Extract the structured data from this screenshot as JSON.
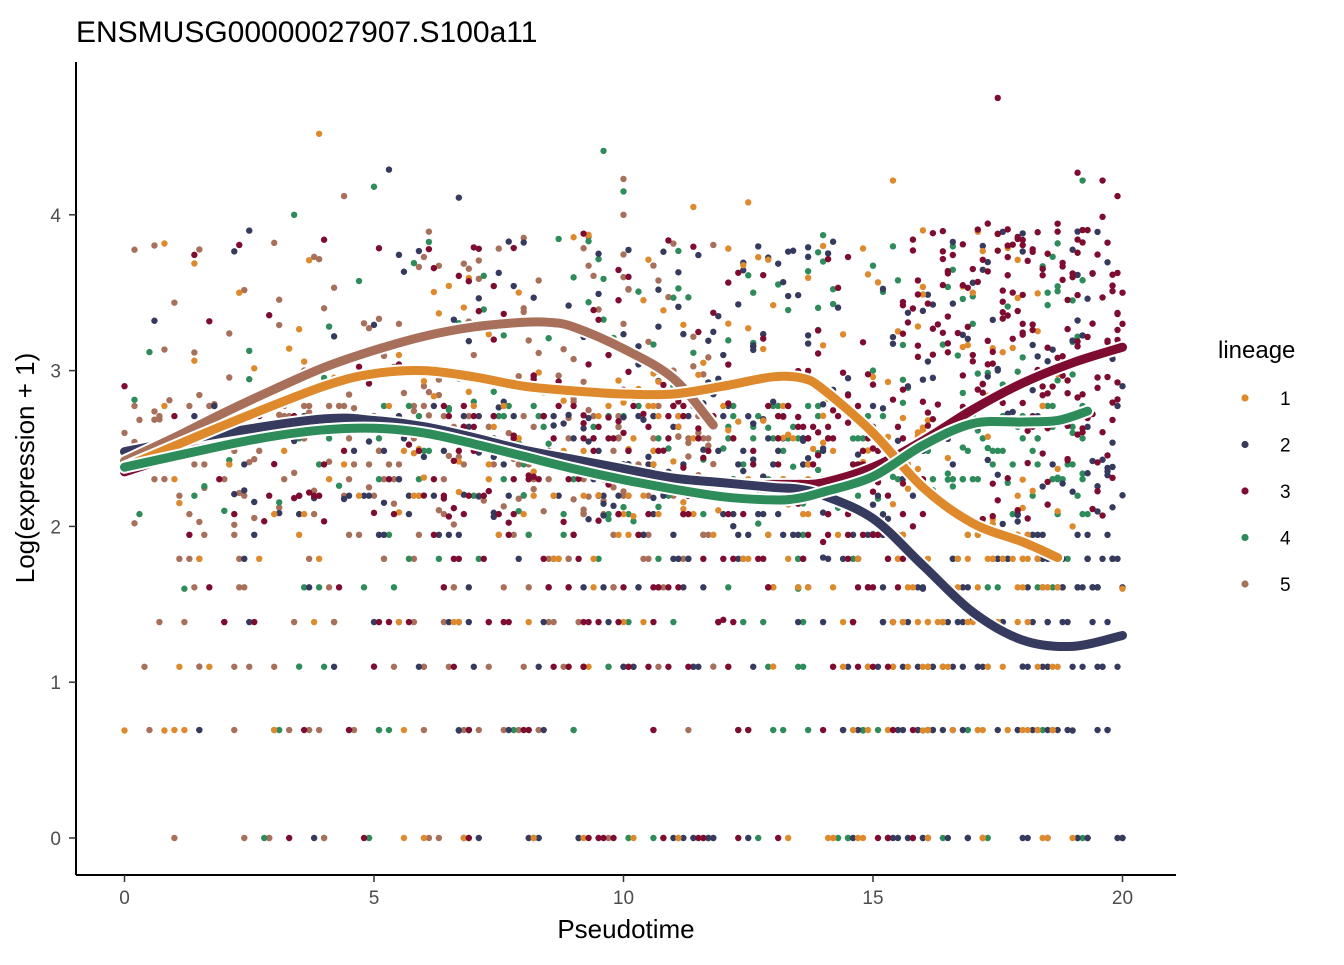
{
  "chart_data": {
    "type": "scatter",
    "title": "ENSMUSG00000027907.S100a11",
    "xlabel": "Pseudotime",
    "ylabel": "Log(expression + 1)",
    "xlim": [
      -1,
      21
    ],
    "ylim": [
      -0.25,
      4.95
    ],
    "x_ticks": [
      0,
      5,
      10,
      15,
      20
    ],
    "y_ticks": [
      0,
      1,
      2,
      3,
      4
    ],
    "grid": false,
    "legend": {
      "title": "lineage",
      "position": "right"
    },
    "series": [
      {
        "name": "1",
        "color": "#DE8A2C",
        "curve": [
          [
            0,
            2.38
          ],
          [
            2,
            2.65
          ],
          [
            4,
            2.9
          ],
          [
            5,
            2.98
          ],
          [
            6,
            3.0
          ],
          [
            7,
            2.96
          ],
          [
            8,
            2.9
          ],
          [
            9,
            2.87
          ],
          [
            10,
            2.85
          ],
          [
            11,
            2.85
          ],
          [
            12,
            2.9
          ],
          [
            13,
            2.96
          ],
          [
            13.6,
            2.95
          ],
          [
            14,
            2.88
          ],
          [
            15,
            2.6
          ],
          [
            16,
            2.25
          ],
          [
            17,
            2.02
          ],
          [
            18,
            1.9
          ],
          [
            18.7,
            1.8
          ]
        ],
        "scatter_examples": [
          [
            0,
            0.69
          ],
          [
            0.8,
            0.69
          ],
          [
            3.9,
            4.52
          ],
          [
            2.3,
            3.5
          ],
          [
            5.5,
            3.1
          ],
          [
            8.5,
            3.3
          ],
          [
            11.4,
            4.05
          ],
          [
            12.5,
            4.08
          ],
          [
            14,
            3.8
          ],
          [
            15.4,
            4.22
          ],
          [
            16,
            3.9
          ],
          [
            17,
            3.5
          ],
          [
            18,
            2.3
          ],
          [
            19,
            2.0
          ],
          [
            20,
            1.6
          ],
          [
            6,
            0.0
          ],
          [
            13,
            1.1
          ],
          [
            16,
            0.69
          ],
          [
            19,
            0.0
          ],
          [
            9.5,
            2.2
          ]
        ]
      },
      {
        "name": "2",
        "color": "#363A5E",
        "curve": [
          [
            0,
            2.48
          ],
          [
            2,
            2.6
          ],
          [
            4,
            2.69
          ],
          [
            5,
            2.68
          ],
          [
            6,
            2.64
          ],
          [
            7,
            2.57
          ],
          [
            8,
            2.49
          ],
          [
            9,
            2.43
          ],
          [
            10,
            2.37
          ],
          [
            11,
            2.31
          ],
          [
            12,
            2.28
          ],
          [
            13,
            2.25
          ],
          [
            13.5,
            2.24
          ],
          [
            14,
            2.2
          ],
          [
            15,
            2.05
          ],
          [
            16,
            1.75
          ],
          [
            17,
            1.45
          ],
          [
            18,
            1.27
          ],
          [
            19,
            1.23
          ],
          [
            20,
            1.3
          ]
        ],
        "scatter_examples": [
          [
            5.3,
            4.29
          ],
          [
            6.7,
            4.11
          ],
          [
            0.6,
            3.32
          ],
          [
            9.5,
            3.75
          ],
          [
            12,
            3.1
          ],
          [
            13,
            2.8
          ],
          [
            14,
            2.5
          ],
          [
            15,
            1.95
          ],
          [
            16,
            1.6
          ],
          [
            17,
            1.4
          ],
          [
            18,
            1.1
          ],
          [
            19,
            0.69
          ],
          [
            20,
            0.0
          ],
          [
            20,
            2.9
          ],
          [
            20,
            2.2
          ],
          [
            6.7,
            0.69
          ],
          [
            12.5,
            0.0
          ],
          [
            16,
            0.0
          ],
          [
            14,
            1.8
          ],
          [
            18,
            0.0
          ]
        ]
      },
      {
        "name": "3",
        "color": "#7E0C30",
        "curve": [
          [
            0,
            2.35
          ],
          [
            2,
            2.55
          ],
          [
            4,
            2.67
          ],
          [
            5,
            2.67
          ],
          [
            6,
            2.63
          ],
          [
            7,
            2.56
          ],
          [
            8,
            2.49
          ],
          [
            9,
            2.42
          ],
          [
            10,
            2.36
          ],
          [
            11,
            2.3
          ],
          [
            12,
            2.27
          ],
          [
            13,
            2.27
          ],
          [
            13.5,
            2.27
          ],
          [
            14,
            2.28
          ],
          [
            15,
            2.38
          ],
          [
            16,
            2.55
          ],
          [
            17,
            2.75
          ],
          [
            18,
            2.92
          ],
          [
            19,
            3.05
          ],
          [
            20,
            3.15
          ]
        ],
        "scatter_examples": [
          [
            17.5,
            4.75
          ],
          [
            19.1,
            4.27
          ],
          [
            19.6,
            4.22
          ],
          [
            19.9,
            4.12
          ],
          [
            18.5,
            3.75
          ],
          [
            19,
            3.6
          ],
          [
            20,
            3.5
          ],
          [
            20,
            3.3
          ],
          [
            18,
            3.3
          ],
          [
            17,
            3.1
          ],
          [
            16,
            2.8
          ],
          [
            15,
            2.5
          ],
          [
            14,
            1.9
          ],
          [
            12,
            1.4
          ],
          [
            6.9,
            0.0
          ],
          [
            9.3,
            0.0
          ],
          [
            0,
            2.9
          ],
          [
            3,
            2.4
          ],
          [
            5,
            1.1
          ],
          [
            10,
            2.6
          ]
        ]
      },
      {
        "name": "4",
        "color": "#2E8C5A",
        "curve": [
          [
            0,
            2.38
          ],
          [
            2,
            2.52
          ],
          [
            3,
            2.58
          ],
          [
            4,
            2.62
          ],
          [
            5,
            2.63
          ],
          [
            6,
            2.6
          ],
          [
            7,
            2.53
          ],
          [
            8,
            2.45
          ],
          [
            9,
            2.37
          ],
          [
            10,
            2.3
          ],
          [
            11,
            2.24
          ],
          [
            12,
            2.19
          ],
          [
            13,
            2.17
          ],
          [
            13.5,
            2.18
          ],
          [
            14,
            2.22
          ],
          [
            15,
            2.32
          ],
          [
            16,
            2.52
          ],
          [
            17,
            2.66
          ],
          [
            18,
            2.67
          ],
          [
            18.7,
            2.68
          ],
          [
            19.3,
            2.74
          ]
        ],
        "scatter_examples": [
          [
            9.6,
            4.41
          ],
          [
            5,
            4.18
          ],
          [
            10,
            4.15
          ],
          [
            3.4,
            4.0
          ],
          [
            19.2,
            4.22
          ],
          [
            18.5,
            3.5
          ],
          [
            17,
            3.3
          ],
          [
            15,
            3.0
          ],
          [
            12,
            2.5
          ],
          [
            1.2,
            1.6
          ],
          [
            3.5,
            1.1
          ],
          [
            10.1,
            0.0
          ],
          [
            14.8,
            0.69
          ],
          [
            19,
            2.6
          ],
          [
            2,
            2.1
          ],
          [
            8,
            2.2
          ],
          [
            13.5,
            1.6
          ],
          [
            16.5,
            2.3
          ],
          [
            7,
            2.8
          ],
          [
            11,
            2.9
          ]
        ]
      },
      {
        "name": "5",
        "color": "#A8705B",
        "curve": [
          [
            0,
            2.42
          ],
          [
            1,
            2.57
          ],
          [
            2,
            2.73
          ],
          [
            3,
            2.88
          ],
          [
            4,
            3.02
          ],
          [
            5,
            3.13
          ],
          [
            6,
            3.22
          ],
          [
            7,
            3.28
          ],
          [
            8,
            3.31
          ],
          [
            8.5,
            3.31
          ],
          [
            9,
            3.28
          ],
          [
            10,
            3.14
          ],
          [
            11,
            2.95
          ],
          [
            11.8,
            2.65
          ]
        ],
        "scatter_examples": [
          [
            10,
            4.23
          ],
          [
            4.4,
            4.12
          ],
          [
            10,
            4.0
          ],
          [
            3,
            3.82
          ],
          [
            8,
            3.4
          ],
          [
            10,
            3.6
          ],
          [
            10,
            3.3
          ],
          [
            11,
            3.0
          ],
          [
            11.8,
            2.4
          ],
          [
            11.8,
            1.1
          ],
          [
            11.8,
            0.0
          ],
          [
            1.5,
            1.1
          ],
          [
            2,
            2.5
          ],
          [
            6,
            2.9
          ],
          [
            9,
            2.8
          ],
          [
            0,
            2.6
          ],
          [
            7,
            3.1
          ],
          [
            4,
            3.4
          ],
          [
            11.5,
            2.6
          ],
          [
            5.5,
            3.3
          ]
        ]
      }
    ]
  }
}
